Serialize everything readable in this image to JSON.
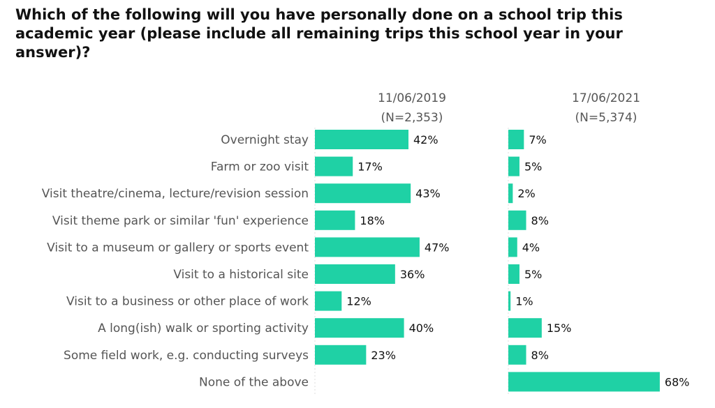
{
  "chart_data": {
    "type": "bar",
    "title": "Which of the following will you have personally done on a school trip this academic year (please include all remaining trips this school year in your answer)?",
    "categories": [
      "Overnight stay",
      "Farm or zoo visit",
      "Visit theatre/cinema, lecture/revision session",
      "Visit theme park or similar 'fun' experience",
      "Visit to a museum or gallery or sports event",
      "Visit to a historical site",
      "Visit to a business or other place of work",
      "A long(ish) walk or sporting activity",
      "Some field work, e.g. conducting surveys",
      "None of the above"
    ],
    "series": [
      {
        "name": "11/06/2019",
        "sub": "(N=2,353)",
        "values": [
          42,
          17,
          43,
          18,
          47,
          36,
          12,
          40,
          23,
          null
        ]
      },
      {
        "name": "17/06/2021",
        "sub": "(N=5,374)",
        "values": [
          7,
          5,
          2,
          8,
          4,
          5,
          1,
          15,
          8,
          68
        ]
      }
    ],
    "unit": "%",
    "color": "#1fd1a5"
  }
}
